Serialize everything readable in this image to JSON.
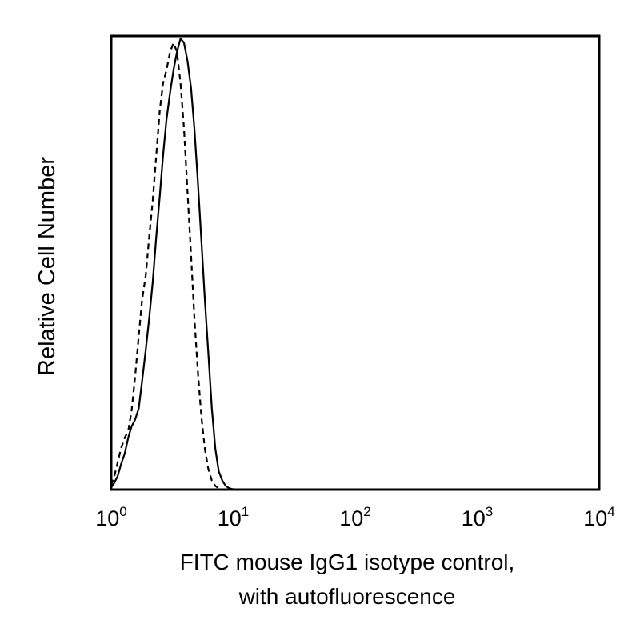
{
  "chart_data": {
    "type": "line",
    "title": "",
    "xlabel": [
      "FITC mouse IgG1 isotype control,",
      "with autofluorescence"
    ],
    "ylabel": "Relative Cell Number",
    "x_scale": "log",
    "xlim": [
      1,
      10000
    ],
    "ylim": [
      0,
      100
    ],
    "x_ticks": [
      {
        "base": "10",
        "exp": "0",
        "value": 1
      },
      {
        "base": "10",
        "exp": "1",
        "value": 10
      },
      {
        "base": "10",
        "exp": "2",
        "value": 100
      },
      {
        "base": "10",
        "exp": "3",
        "value": 1000
      },
      {
        "base": "10",
        "exp": "4",
        "value": 10000
      }
    ],
    "grid": false,
    "legend": "none",
    "series": [
      {
        "style": "solid",
        "color": "#000000",
        "points": [
          [
            1.0,
            0.5
          ],
          [
            1.06,
            1.5
          ],
          [
            1.13,
            3.0
          ],
          [
            1.2,
            5.5
          ],
          [
            1.29,
            8.0
          ],
          [
            1.38,
            11.5
          ],
          [
            1.47,
            14.0
          ],
          [
            1.57,
            15.5
          ],
          [
            1.68,
            18.0
          ],
          [
            1.79,
            24.0
          ],
          [
            1.92,
            31.0
          ],
          [
            2.05,
            38.0
          ],
          [
            2.19,
            46.0
          ],
          [
            2.34,
            56.0
          ],
          [
            2.5,
            65.0
          ],
          [
            2.66,
            74.0
          ],
          [
            2.84,
            82.0
          ],
          [
            3.04,
            88.0
          ],
          [
            3.24,
            93.0
          ],
          [
            3.46,
            97.0
          ],
          [
            3.7,
            100.0
          ],
          [
            3.95,
            99.0
          ],
          [
            4.22,
            95.0
          ],
          [
            4.51,
            89.0
          ],
          [
            4.81,
            80.0
          ],
          [
            5.14,
            68.0
          ],
          [
            5.49,
            55.0
          ],
          [
            5.86,
            42.0
          ],
          [
            6.26,
            30.0
          ],
          [
            6.68,
            18.0
          ],
          [
            7.14,
            9.0
          ],
          [
            7.62,
            4.0
          ],
          [
            8.14,
            2.0
          ],
          [
            8.69,
            0.8
          ],
          [
            9.28,
            0.3
          ],
          [
            9.91,
            0.1
          ],
          [
            10.6,
            0.0
          ]
        ]
      },
      {
        "style": "dashed",
        "color": "#000000",
        "points": [
          [
            1.0,
            1.0
          ],
          [
            1.06,
            3.0
          ],
          [
            1.13,
            6.0
          ],
          [
            1.2,
            9.0
          ],
          [
            1.29,
            11.5
          ],
          [
            1.38,
            13.0
          ],
          [
            1.47,
            17.5
          ],
          [
            1.57,
            25.0
          ],
          [
            1.68,
            34.0
          ],
          [
            1.79,
            42.0
          ],
          [
            1.92,
            47.5
          ],
          [
            2.05,
            56.0
          ],
          [
            2.19,
            64.0
          ],
          [
            2.34,
            74.0
          ],
          [
            2.5,
            84.0
          ],
          [
            2.66,
            90.0
          ],
          [
            2.84,
            93.0
          ],
          [
            3.04,
            97.0
          ],
          [
            3.24,
            99.0
          ],
          [
            3.46,
            97.0
          ],
          [
            3.7,
            90.0
          ],
          [
            3.95,
            80.0
          ],
          [
            4.22,
            66.0
          ],
          [
            4.51,
            52.0
          ],
          [
            4.81,
            38.0
          ],
          [
            5.14,
            26.0
          ],
          [
            5.49,
            16.0
          ],
          [
            5.86,
            9.0
          ],
          [
            6.26,
            4.5
          ],
          [
            6.68,
            2.0
          ],
          [
            7.14,
            0.8
          ],
          [
            7.62,
            0.3
          ],
          [
            8.14,
            0.0
          ]
        ]
      }
    ]
  }
}
